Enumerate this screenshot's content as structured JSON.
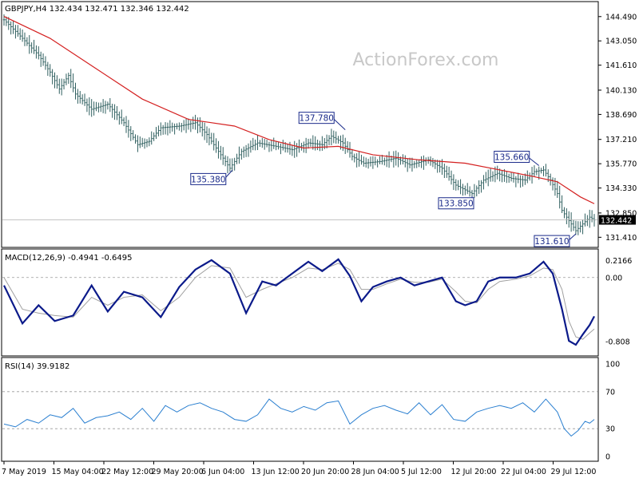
{
  "chart_data": [
    {
      "panel": "price",
      "type": "candlestick",
      "header": "GBPJPY,H4  132.434 132.471 132.346 132.442",
      "watermark": "ActionForex.com",
      "ylim": [
        131.0,
        145.0
      ],
      "y_ticks": [
        "144.490",
        "143.050",
        "141.610",
        "140.130",
        "138.690",
        "137.210",
        "135.770",
        "134.330",
        "132.850",
        "131.410"
      ],
      "last_price": "132.442",
      "moving_average_color": "#d42020",
      "bar_color": "#2f5f5f",
      "series": [
        {
          "x": 0,
          "close": 144.3
        },
        {
          "x": 8,
          "close": 143.2
        },
        {
          "x": 15,
          "close": 142.2
        },
        {
          "x": 20,
          "close": 141.2
        },
        {
          "x": 24,
          "close": 140.2
        },
        {
          "x": 28,
          "close": 141.0
        },
        {
          "x": 31,
          "close": 139.9
        },
        {
          "x": 38,
          "close": 139.0
        },
        {
          "x": 45,
          "close": 139.3
        },
        {
          "x": 52,
          "close": 138.2
        },
        {
          "x": 58,
          "close": 136.9
        },
        {
          "x": 63,
          "close": 137.1
        },
        {
          "x": 68,
          "close": 137.9
        },
        {
          "x": 76,
          "close": 138.0
        },
        {
          "x": 83,
          "close": 138.2
        },
        {
          "x": 88,
          "close": 137.5
        },
        {
          "x": 93,
          "close": 136.5
        },
        {
          "x": 98,
          "close": 135.5
        },
        {
          "x": 103,
          "close": 136.5
        },
        {
          "x": 110,
          "close": 137.0
        },
        {
          "x": 118,
          "close": 136.8
        },
        {
          "x": 125,
          "close": 136.6
        },
        {
          "x": 132,
          "close": 137.0
        },
        {
          "x": 138,
          "close": 136.9
        },
        {
          "x": 142,
          "close": 137.4
        },
        {
          "x": 147,
          "close": 137.0
        },
        {
          "x": 151,
          "close": 136.2
        },
        {
          "x": 156,
          "close": 135.8
        },
        {
          "x": 163,
          "close": 135.9
        },
        {
          "x": 170,
          "close": 136.1
        },
        {
          "x": 176,
          "close": 135.7
        },
        {
          "x": 184,
          "close": 136.0
        },
        {
          "x": 190,
          "close": 135.5
        },
        {
          "x": 196,
          "close": 134.5
        },
        {
          "x": 203,
          "close": 134.0
        },
        {
          "x": 208,
          "close": 134.8
        },
        {
          "x": 214,
          "close": 135.2
        },
        {
          "x": 220,
          "close": 134.9
        },
        {
          "x": 226,
          "close": 134.8
        },
        {
          "x": 230,
          "close": 135.3
        },
        {
          "x": 234,
          "close": 135.4
        },
        {
          "x": 237,
          "close": 134.8
        },
        {
          "x": 240,
          "close": 134.0
        },
        {
          "x": 242,
          "close": 133.0
        },
        {
          "x": 245,
          "close": 132.4
        },
        {
          "x": 248,
          "close": 131.8
        },
        {
          "x": 251,
          "close": 132.2
        },
        {
          "x": 254,
          "close": 132.6
        },
        {
          "x": 256,
          "close": 132.44
        }
      ],
      "moving_average": [
        {
          "x": 0,
          "y": 144.5
        },
        {
          "x": 20,
          "y": 143.2
        },
        {
          "x": 40,
          "y": 141.4
        },
        {
          "x": 60,
          "y": 139.6
        },
        {
          "x": 80,
          "y": 138.4
        },
        {
          "x": 100,
          "y": 138.0
        },
        {
          "x": 115,
          "y": 137.2
        },
        {
          "x": 130,
          "y": 136.7
        },
        {
          "x": 145,
          "y": 136.8
        },
        {
          "x": 160,
          "y": 136.3
        },
        {
          "x": 180,
          "y": 136.0
        },
        {
          "x": 200,
          "y": 135.8
        },
        {
          "x": 215,
          "y": 135.4
        },
        {
          "x": 230,
          "y": 135.0
        },
        {
          "x": 240,
          "y": 134.7
        },
        {
          "x": 250,
          "y": 133.8
        },
        {
          "x": 256,
          "y": 133.4
        }
      ],
      "annotations": [
        {
          "label": "137.780",
          "x": 148,
          "y": 137.78
        },
        {
          "label": "135.380",
          "x": 99,
          "y": 135.38
        },
        {
          "label": "133.850",
          "x": 203,
          "y": 133.85
        },
        {
          "label": "135.660",
          "x": 232,
          "y": 135.66
        },
        {
          "label": "131.610",
          "x": 248,
          "y": 131.61
        }
      ]
    },
    {
      "panel": "macd",
      "type": "line",
      "header": "MACD(12,26,9) -0.4941 -0.6495",
      "ylim": [
        -0.95,
        0.3
      ],
      "y_ticks": [
        "0.2166",
        "0.00",
        "-0.808"
      ],
      "series": [
        {
          "name": "MACD",
          "color": "#0b1a8a",
          "x": [
            0,
            8,
            15,
            22,
            30,
            38,
            45,
            52,
            60,
            68,
            76,
            83,
            90,
            98,
            105,
            112,
            118,
            125,
            132,
            138,
            145,
            150,
            155,
            160,
            166,
            172,
            178,
            184,
            190,
            196,
            200,
            205,
            210,
            215,
            222,
            228,
            234,
            238,
            242,
            245,
            248,
            251,
            254,
            256
          ],
          "values": [
            -0.1,
            -0.58,
            -0.35,
            -0.55,
            -0.48,
            -0.1,
            -0.43,
            -0.18,
            -0.25,
            -0.5,
            -0.12,
            0.1,
            0.22,
            0.05,
            -0.45,
            -0.05,
            -0.1,
            0.05,
            0.2,
            0.08,
            0.23,
            0.02,
            -0.3,
            -0.12,
            -0.05,
            0.0,
            -0.1,
            -0.05,
            0.0,
            -0.3,
            -0.35,
            -0.3,
            -0.05,
            0.0,
            0.0,
            0.05,
            0.2,
            0.05,
            -0.4,
            -0.8,
            -0.85,
            -0.72,
            -0.6,
            -0.49
          ]
        },
        {
          "name": "Signal",
          "color": "#a0a0a0",
          "x": [
            0,
            8,
            15,
            22,
            30,
            38,
            45,
            52,
            60,
            68,
            76,
            83,
            90,
            98,
            105,
            112,
            118,
            125,
            132,
            138,
            145,
            150,
            155,
            160,
            166,
            172,
            178,
            184,
            190,
            196,
            200,
            205,
            210,
            215,
            222,
            228,
            234,
            238,
            242,
            245,
            248,
            251,
            254,
            256
          ],
          "values": [
            0.0,
            -0.4,
            -0.45,
            -0.48,
            -0.5,
            -0.25,
            -0.35,
            -0.25,
            -0.22,
            -0.42,
            -0.25,
            0.0,
            0.15,
            0.12,
            -0.25,
            -0.15,
            -0.08,
            0.0,
            0.12,
            0.1,
            0.18,
            0.1,
            -0.15,
            -0.15,
            -0.08,
            -0.02,
            -0.06,
            -0.06,
            -0.02,
            -0.18,
            -0.3,
            -0.32,
            -0.15,
            -0.05,
            -0.02,
            0.02,
            0.12,
            0.1,
            -0.15,
            -0.55,
            -0.75,
            -0.78,
            -0.7,
            -0.65
          ]
        }
      ]
    },
    {
      "panel": "rsi",
      "type": "line",
      "header": "RSI(14) 39.9182",
      "ylim": [
        0,
        100
      ],
      "y_ticks": [
        "100",
        "70",
        "30",
        "0"
      ],
      "levels": [
        70,
        30
      ],
      "series": [
        {
          "name": "RSI",
          "color": "#2a7fd0",
          "x": [
            0,
            5,
            10,
            15,
            20,
            25,
            30,
            35,
            40,
            45,
            50,
            55,
            60,
            65,
            70,
            75,
            80,
            85,
            90,
            95,
            100,
            105,
            110,
            115,
            120,
            125,
            130,
            135,
            140,
            145,
            150,
            155,
            160,
            165,
            170,
            175,
            180,
            185,
            190,
            195,
            200,
            205,
            210,
            215,
            220,
            225,
            230,
            235,
            240,
            243,
            246,
            249,
            252,
            254,
            256
          ],
          "values": [
            35,
            32,
            40,
            36,
            45,
            42,
            52,
            36,
            42,
            44,
            48,
            40,
            52,
            38,
            55,
            48,
            55,
            58,
            52,
            48,
            40,
            38,
            45,
            62,
            52,
            48,
            54,
            50,
            58,
            60,
            35,
            45,
            52,
            55,
            50,
            46,
            58,
            45,
            56,
            40,
            38,
            48,
            52,
            55,
            52,
            58,
            48,
            62,
            48,
            30,
            22,
            28,
            38,
            36,
            40
          ]
        }
      ]
    }
  ],
  "x_axis": {
    "labels": [
      "7 May 2019",
      "15 May 04:00",
      "22 May 12:00",
      "29 May 20:00",
      "6 Jun 04:00",
      "13 Jun 12:00",
      "20 Jun 20:00",
      "28 Jun 04:00",
      "5 Jul 12:00",
      "12 Jul 20:00",
      "22 Jul 04:00",
      "29 Jul 12:00"
    ]
  }
}
